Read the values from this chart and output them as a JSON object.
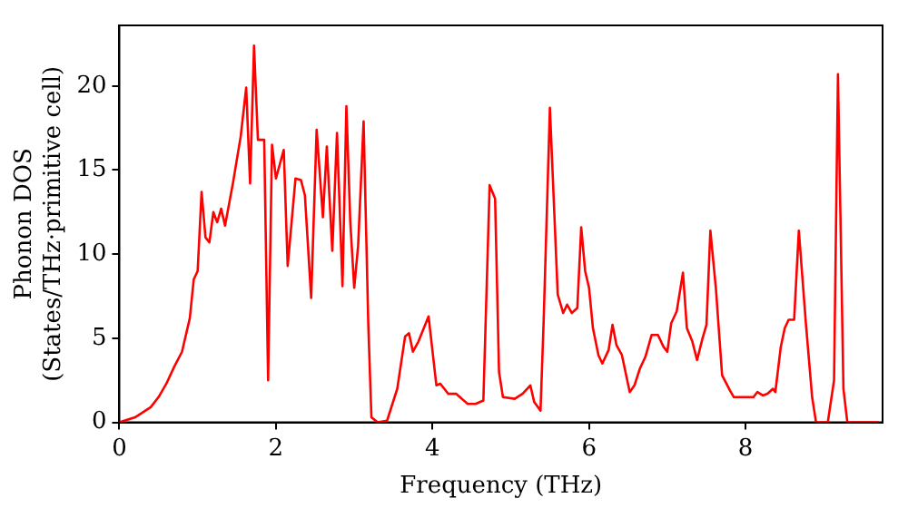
{
  "chart_data": {
    "type": "line",
    "xlabel": "Frequency (THz)",
    "ylabel": "Phonon DOS\n(States/THz·primitive cell)",
    "xlim": [
      0,
      9.75
    ],
    "ylim": [
      0,
      23.6
    ],
    "xticks": [
      0,
      2,
      4,
      6,
      8
    ],
    "yticks": [
      0,
      5,
      10,
      15,
      20
    ],
    "grid": false,
    "legend": false,
    "marker": "none",
    "line_style": "solid",
    "series": [
      {
        "color": "#ff0000",
        "x": [
          0,
          0.2,
          0.4,
          0.5,
          0.6,
          0.7,
          0.8,
          0.9,
          0.95,
          1.0,
          1.05,
          1.1,
          1.15,
          1.2,
          1.25,
          1.3,
          1.35,
          1.45,
          1.55,
          1.62,
          1.67,
          1.72,
          1.77,
          1.85,
          1.9,
          1.95,
          2.0,
          2.1,
          2.15,
          2.25,
          2.32,
          2.37,
          2.45,
          2.52,
          2.6,
          2.65,
          2.72,
          2.78,
          2.85,
          2.9,
          2.95,
          3.0,
          3.05,
          3.12,
          3.18,
          3.22,
          3.3,
          3.42,
          3.55,
          3.65,
          3.7,
          3.75,
          3.82,
          3.95,
          4.05,
          4.1,
          4.2,
          4.3,
          4.45,
          4.55,
          4.65,
          4.73,
          4.8,
          4.85,
          4.9,
          5.05,
          5.15,
          5.25,
          5.3,
          5.38,
          5.42,
          5.5,
          5.6,
          5.67,
          5.72,
          5.78,
          5.85,
          5.9,
          5.95,
          6.0,
          6.05,
          6.12,
          6.17,
          6.25,
          6.3,
          6.35,
          6.42,
          6.52,
          6.58,
          6.65,
          6.72,
          6.8,
          6.88,
          6.95,
          7.0,
          7.05,
          7.12,
          7.2,
          7.25,
          7.32,
          7.38,
          7.45,
          7.5,
          7.55,
          7.62,
          7.7,
          7.8,
          7.85,
          8.0,
          8.1,
          8.15,
          8.22,
          8.28,
          8.35,
          8.38,
          8.45,
          8.5,
          8.55,
          8.62,
          8.68,
          8.77,
          8.85,
          8.9,
          9.05,
          9.13,
          9.18,
          9.25,
          9.3,
          9.7
        ],
        "values": [
          0,
          0.3,
          0.9,
          1.5,
          2.3,
          3.3,
          4.2,
          6.2,
          8.5,
          9.0,
          13.7,
          11.0,
          10.7,
          12.5,
          11.9,
          12.7,
          11.7,
          14.2,
          17.0,
          19.9,
          14.2,
          22.4,
          16.8,
          16.8,
          2.5,
          16.5,
          14.5,
          16.2,
          9.3,
          14.5,
          14.4,
          13.5,
          7.4,
          17.4,
          12.2,
          16.4,
          10.2,
          17.2,
          8.1,
          18.8,
          11.9,
          8.0,
          10.5,
          17.9,
          5.8,
          0.3,
          0.0,
          0.1,
          2.0,
          5.1,
          5.3,
          4.2,
          4.8,
          6.3,
          2.2,
          2.3,
          1.7,
          1.7,
          1.1,
          1.1,
          1.3,
          14.1,
          13.3,
          3.0,
          1.5,
          1.4,
          1.7,
          2.2,
          1.2,
          0.7,
          6.0,
          18.7,
          7.6,
          6.5,
          7.0,
          6.5,
          6.8,
          11.6,
          9.0,
          8.0,
          5.6,
          4.0,
          3.5,
          4.3,
          5.8,
          4.6,
          4.0,
          1.8,
          2.2,
          3.2,
          3.9,
          5.2,
          5.2,
          4.5,
          4.2,
          5.9,
          6.6,
          8.9,
          5.6,
          4.8,
          3.7,
          5.0,
          5.8,
          11.4,
          8.0,
          2.8,
          1.9,
          1.5,
          1.5,
          1.5,
          1.8,
          1.6,
          1.7,
          2.0,
          1.8,
          4.5,
          5.6,
          6.1,
          6.1,
          11.4,
          5.9,
          1.5,
          0,
          0,
          2.5,
          20.7,
          2.0,
          0,
          0
        ]
      }
    ]
  }
}
